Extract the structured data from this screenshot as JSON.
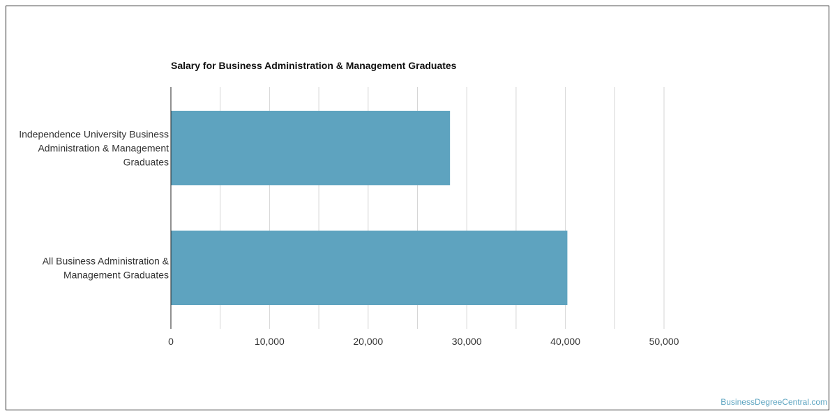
{
  "chart_data": {
    "type": "bar",
    "orientation": "horizontal",
    "title": "Salary for Business Administration & Management Graduates",
    "categories": [
      "Independence University Business Administration & Management Graduates",
      "All Business Administration & Management Graduates"
    ],
    "category_label_lines": [
      [
        "Independence University Business",
        "Administration & Management",
        "Graduates"
      ],
      [
        "All Business Administration &",
        "Management Graduates"
      ]
    ],
    "values": [
      28300,
      40200
    ],
    "xlim": [
      0,
      60000
    ],
    "x_ticks": [
      0,
      10000,
      20000,
      30000,
      40000,
      50000
    ],
    "x_tick_labels": [
      "0",
      "10,000",
      "20,000",
      "30,000",
      "40,000",
      "50,000"
    ],
    "grid": true,
    "bar_color": "#5ea3bf",
    "grid_color": "#d6d6d6",
    "axis_color": "#222222"
  },
  "watermark": "BusinessDegreeCentral.com"
}
